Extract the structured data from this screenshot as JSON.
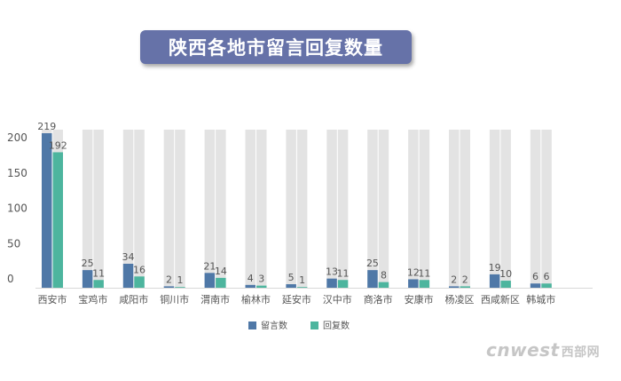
{
  "title": "陕西各地市留言回复数量",
  "watermark": {
    "text": "cnwest",
    "cn": "西部网"
  },
  "colors": {
    "series1": "#4f78a7",
    "series2": "#4db59e",
    "track": "#e3e3e3",
    "axis": "#d9d9d9",
    "text": "#555555"
  },
  "chart_data": {
    "type": "bar",
    "categories": [
      "西安市",
      "宝鸡市",
      "咸阳市",
      "铜川市",
      "渭南市",
      "榆林市",
      "延安市",
      "汉中市",
      "商洛市",
      "安康市",
      "杨凌区",
      "西咸新区",
      "韩城市"
    ],
    "series": [
      {
        "name": "留言数",
        "values": [
          219,
          25,
          34,
          2,
          21,
          4,
          5,
          13,
          25,
          12,
          2,
          19,
          6
        ]
      },
      {
        "name": "回复数",
        "values": [
          192,
          11,
          16,
          1,
          14,
          3,
          1,
          11,
          8,
          11,
          2,
          10,
          6
        ]
      }
    ],
    "yticks": [
      "0",
      "50",
      "100",
      "150",
      "200"
    ],
    "ylim": [
      0,
      219
    ],
    "legend_position": "bottom"
  }
}
